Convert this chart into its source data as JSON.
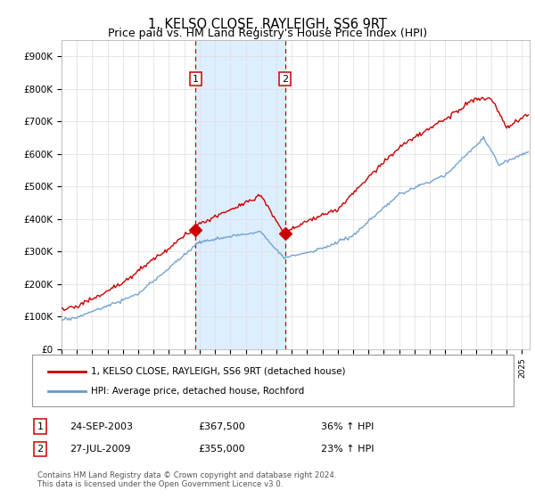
{
  "title": "1, KELSO CLOSE, RAYLEIGH, SS6 9RT",
  "subtitle": "Price paid vs. HM Land Registry's House Price Index (HPI)",
  "legend_line1": "1, KELSO CLOSE, RAYLEIGH, SS6 9RT (detached house)",
  "legend_line2": "HPI: Average price, detached house, Rochford",
  "footer1": "Contains HM Land Registry data © Crown copyright and database right 2024.",
  "footer2": "This data is licensed under the Open Government Licence v3.0.",
  "table": [
    {
      "num": "1",
      "date": "24-SEP-2003",
      "price": "£367,500",
      "hpi": "36% ↑ HPI"
    },
    {
      "num": "2",
      "date": "27-JUL-2009",
      "price": "£355,000",
      "hpi": "23% ↑ HPI"
    }
  ],
  "sale1_year": 2003.73,
  "sale1_price": 367500,
  "sale2_year": 2009.57,
  "sale2_price": 355000,
  "hpi_color": "#6699cc",
  "price_color": "#cc0000",
  "shade_color": "#ddeeff",
  "vline_color": "#cc0000",
  "ylim": [
    0,
    950000
  ],
  "yticks": [
    0,
    100000,
    200000,
    300000,
    400000,
    500000,
    600000,
    700000,
    800000,
    900000
  ],
  "xlim_start": 1995.0,
  "xlim_end": 2025.5
}
